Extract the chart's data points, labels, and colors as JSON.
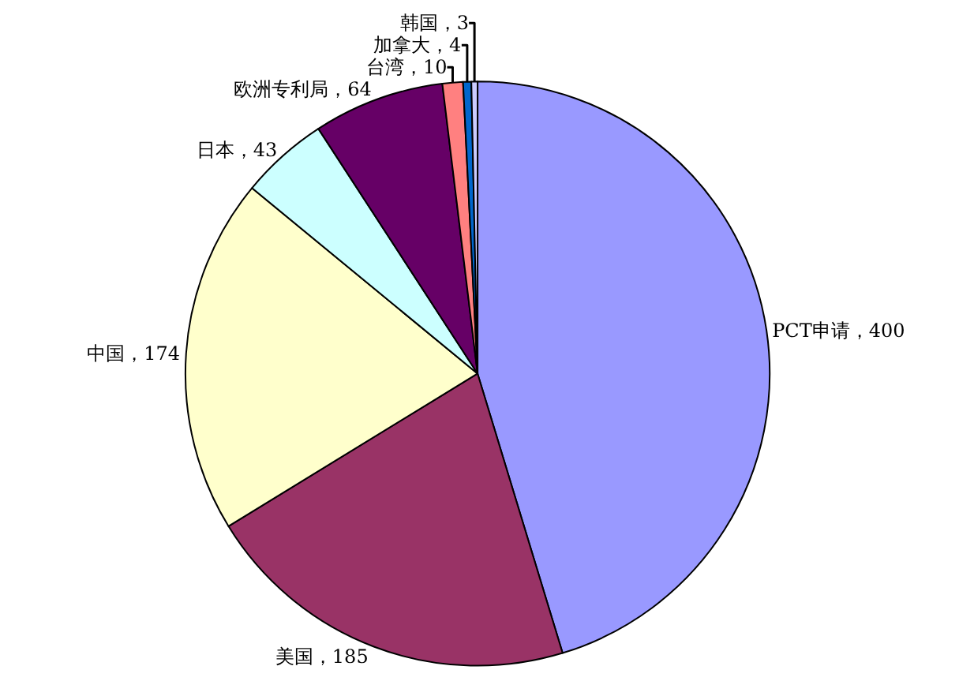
{
  "chart_data": {
    "type": "pie",
    "categories": [
      "PCT申请，400",
      "美国，185",
      "中国，174",
      "日本，43",
      "欧洲专利局，64",
      "台湾，10",
      "加拿大，4",
      "韩国，3"
    ],
    "values": [
      400,
      185,
      174,
      43,
      64,
      10,
      4,
      3
    ],
    "colors": [
      "#9999ff",
      "#993366",
      "#ffffcc",
      "#ccffff",
      "#660066",
      "#ff8080",
      "#0066cc",
      "#ccccff"
    ]
  }
}
